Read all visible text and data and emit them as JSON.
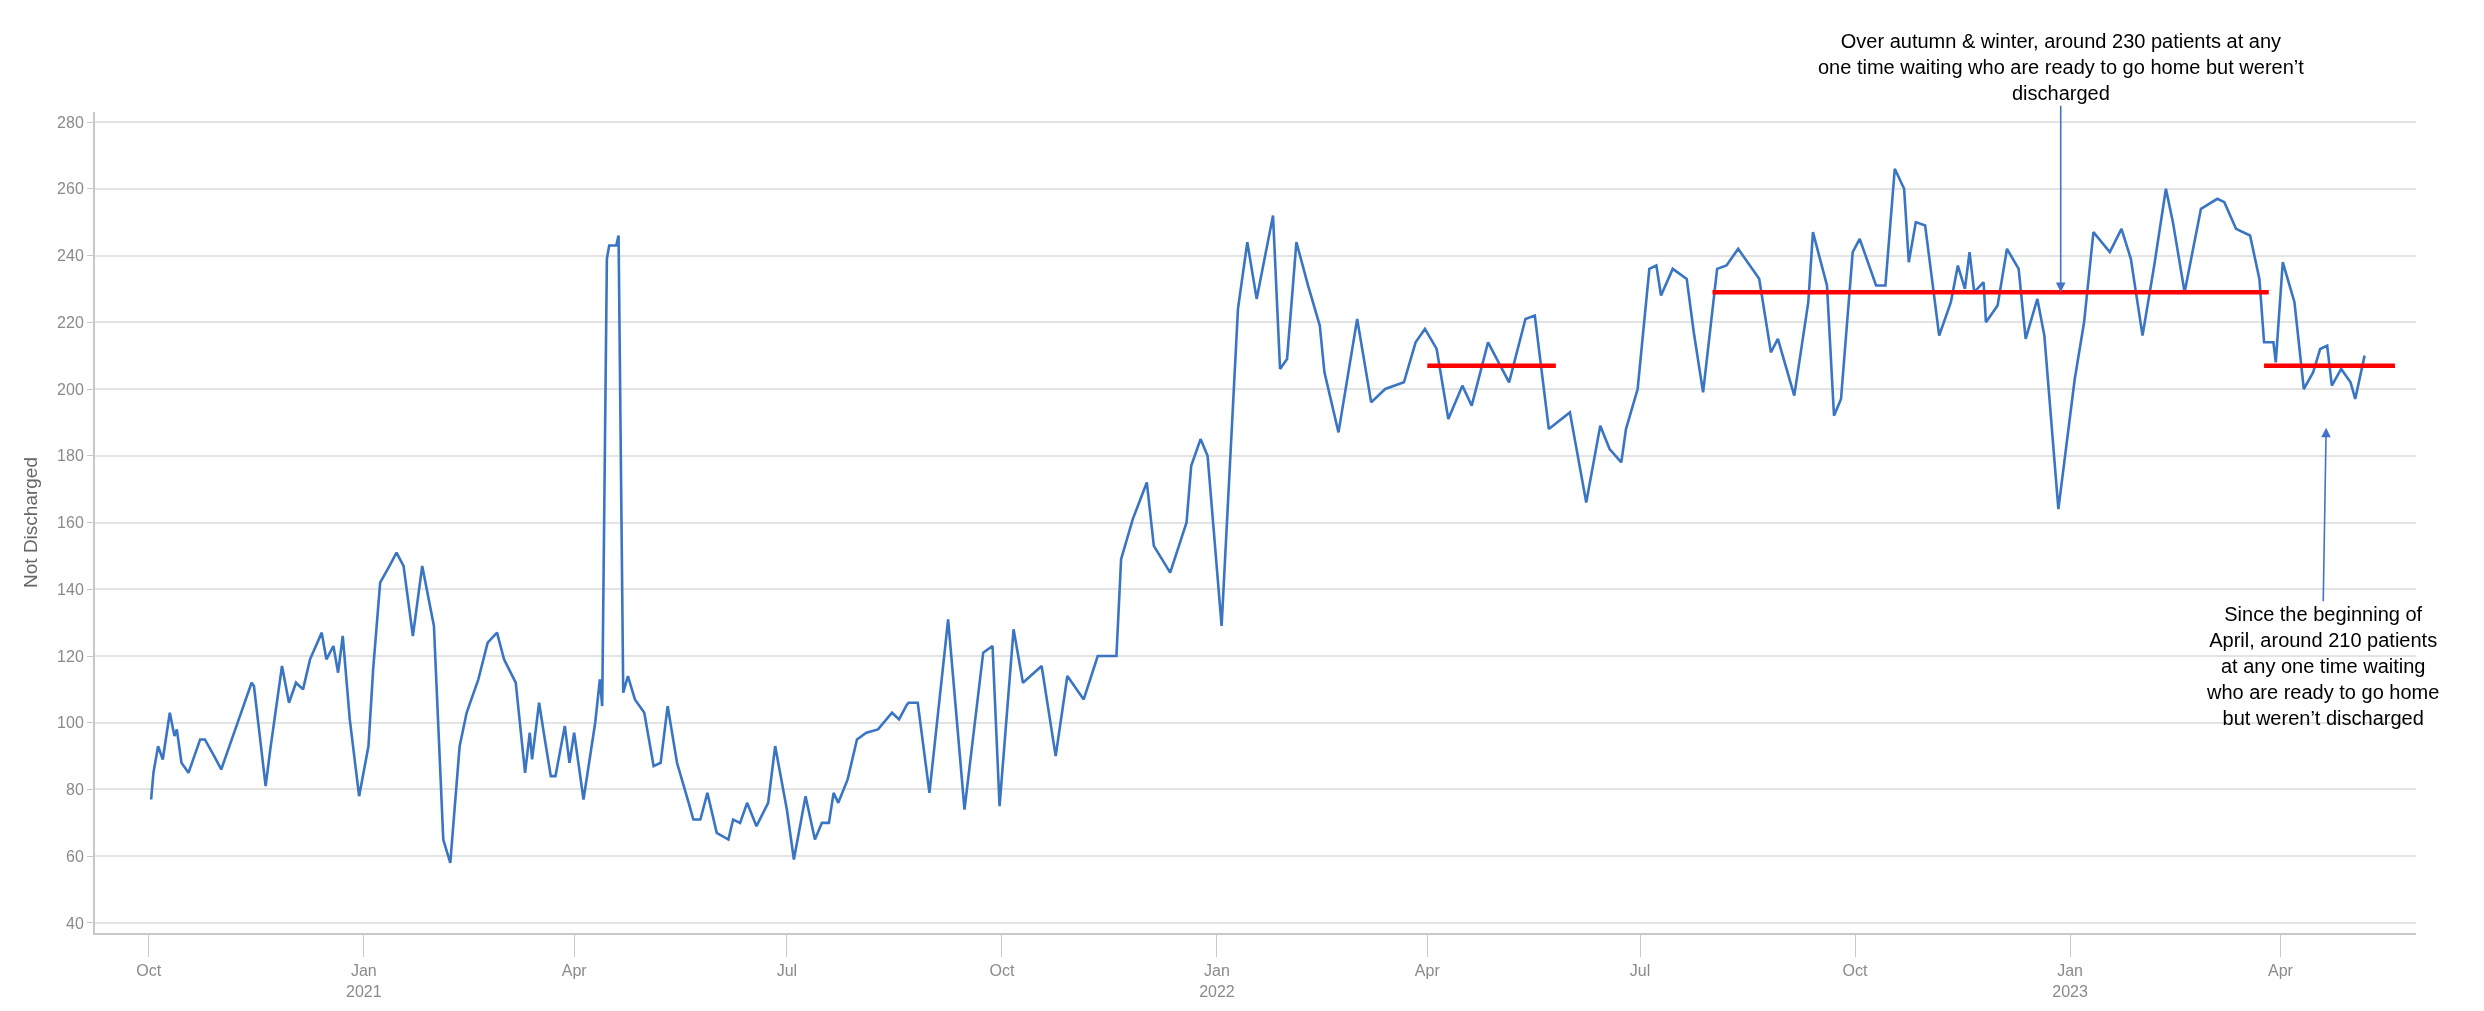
{
  "chart_data": {
    "type": "line",
    "ylabel": "Not Discharged",
    "grid": "y",
    "xlim": [
      "2020-09-08",
      "2023-05-29"
    ],
    "ylim": [
      37,
      283
    ],
    "xticks": [
      {
        "value": "2020-10-01",
        "label": "Oct"
      },
      {
        "value": "2021-01-01",
        "label": "Jan 2021"
      },
      {
        "value": "2021-04-01",
        "label": "Apr"
      },
      {
        "value": "2021-07-01",
        "label": "Jul"
      },
      {
        "value": "2021-10-01",
        "label": "Oct"
      },
      {
        "value": "2022-01-01",
        "label": "Jan 2022"
      },
      {
        "value": "2022-04-01",
        "label": "Apr"
      },
      {
        "value": "2022-07-01",
        "label": "Jul"
      },
      {
        "value": "2022-10-01",
        "label": "Oct"
      },
      {
        "value": "2023-01-01",
        "label": "Jan 2023"
      },
      {
        "value": "2023-04-01",
        "label": "Apr"
      }
    ],
    "yticks": [
      40,
      60,
      80,
      100,
      120,
      140,
      160,
      180,
      200,
      220,
      240,
      260,
      280
    ],
    "x": [
      "2020-10-02",
      "2020-10-03",
      "2020-10-05",
      "2020-10-07",
      "2020-10-10",
      "2020-10-12",
      "2020-10-13",
      "2020-10-15",
      "2020-10-18",
      "2020-10-23",
      "2020-10-25",
      "2020-10-29",
      "2020-11-01",
      "2020-11-09",
      "2020-11-14",
      "2020-11-15",
      "2020-11-20",
      "2020-11-22",
      "2020-11-27",
      "2020-11-30",
      "2020-12-03",
      "2020-12-06",
      "2020-12-09",
      "2020-12-14",
      "2020-12-16",
      "2020-12-19",
      "2020-12-21",
      "2020-12-23",
      "2020-12-26",
      "2020-12-30",
      "2021-01-03",
      "2021-01-05",
      "2021-01-08",
      "2021-01-12",
      "2021-01-15",
      "2021-01-18",
      "2021-01-22",
      "2021-01-26",
      "2021-01-31",
      "2021-02-04",
      "2021-02-07",
      "2021-02-11",
      "2021-02-14",
      "2021-02-19",
      "2021-02-23",
      "2021-02-27",
      "2021-03-02",
      "2021-03-07",
      "2021-03-11",
      "2021-03-13",
      "2021-03-14",
      "2021-03-17",
      "2021-03-19",
      "2021-03-22",
      "2021-03-24",
      "2021-03-28",
      "2021-03-30",
      "2021-04-01",
      "2021-04-05",
      "2021-04-10",
      "2021-04-12",
      "2021-04-13",
      "2021-04-15",
      "2021-04-16",
      "2021-04-19",
      "2021-04-20",
      "2021-04-22",
      "2021-04-24",
      "2021-04-27",
      "2021-05-01",
      "2021-05-05",
      "2021-05-08",
      "2021-05-11",
      "2021-05-15",
      "2021-05-20",
      "2021-05-22",
      "2021-05-25",
      "2021-05-28",
      "2021-06-01",
      "2021-06-06",
      "2021-06-08",
      "2021-06-11",
      "2021-06-14",
      "2021-06-18",
      "2021-06-23",
      "2021-06-26",
      "2021-07-01",
      "2021-07-04",
      "2021-07-09",
      "2021-07-13",
      "2021-07-16",
      "2021-07-19",
      "2021-07-21",
      "2021-07-23",
      "2021-07-27",
      "2021-07-31",
      "2021-08-04",
      "2021-08-09",
      "2021-08-15",
      "2021-08-18",
      "2021-08-21",
      "2021-08-22",
      "2021-08-26",
      "2021-08-31",
      "2021-09-08",
      "2021-09-15",
      "2021-09-23",
      "2021-09-27",
      "2021-09-30",
      "2021-10-06",
      "2021-10-10",
      "2021-10-18",
      "2021-10-24",
      "2021-10-29",
      "2021-11-05",
      "2021-11-11",
      "2021-11-19",
      "2021-11-21",
      "2021-11-26",
      "2021-12-02",
      "2021-12-05",
      "2021-12-12",
      "2021-12-19",
      "2021-12-21",
      "2021-12-25",
      "2021-12-28",
      "2022-01-03",
      "2022-01-10",
      "2022-01-14",
      "2022-01-18",
      "2022-01-25",
      "2022-01-28",
      "2022-01-31",
      "2022-02-04",
      "2022-02-09",
      "2022-02-14",
      "2022-02-16",
      "2022-02-22",
      "2022-03-02",
      "2022-03-08",
      "2022-03-14",
      "2022-03-22",
      "2022-03-27",
      "2022-03-31",
      "2022-04-05",
      "2022-04-10",
      "2022-04-16",
      "2022-04-20",
      "2022-04-27",
      "2022-05-06",
      "2022-05-13",
      "2022-05-17",
      "2022-05-23",
      "2022-06-01",
      "2022-06-08",
      "2022-06-14",
      "2022-06-18",
      "2022-06-23",
      "2022-06-25",
      "2022-06-30",
      "2022-07-05",
      "2022-07-08",
      "2022-07-10",
      "2022-07-15",
      "2022-07-21",
      "2022-07-24",
      "2022-07-28",
      "2022-08-03",
      "2022-08-07",
      "2022-08-12",
      "2022-08-21",
      "2022-08-26",
      "2022-08-29",
      "2022-09-05",
      "2022-09-11",
      "2022-09-13",
      "2022-09-19",
      "2022-09-22",
      "2022-09-25",
      "2022-09-30",
      "2022-10-03",
      "2022-10-10",
      "2022-10-14",
      "2022-10-18",
      "2022-10-22",
      "2022-10-24",
      "2022-10-27",
      "2022-10-31",
      "2022-11-06",
      "2022-11-11",
      "2022-11-14",
      "2022-11-17",
      "2022-11-19",
      "2022-11-21",
      "2022-11-25",
      "2022-11-26",
      "2022-12-01",
      "2022-12-05",
      "2022-12-10",
      "2022-12-13",
      "2022-12-18",
      "2022-12-21",
      "2022-12-27",
      "2023-01-03",
      "2023-01-07",
      "2023-01-11",
      "2023-01-18",
      "2023-01-23",
      "2023-01-27",
      "2023-02-01",
      "2023-02-06",
      "2023-02-11",
      "2023-02-14",
      "2023-02-19",
      "2023-02-26",
      "2023-03-05",
      "2023-03-08",
      "2023-03-13",
      "2023-03-19",
      "2023-03-23",
      "2023-03-25",
      "2023-03-29",
      "2023-03-30",
      "2023-04-02",
      "2023-04-07",
      "2023-04-11",
      "2023-04-15",
      "2023-04-18",
      "2023-04-21",
      "2023-04-23",
      "2023-04-27",
      "2023-05-01",
      "2023-05-03",
      "2023-05-07"
    ],
    "series": [
      {
        "color": "#3a75c4",
        "values": [
          77,
          85,
          93,
          89,
          103,
          96,
          98,
          88,
          85,
          95,
          95,
          90,
          86,
          102,
          112,
          111,
          81,
          92,
          117,
          106,
          112,
          110,
          119,
          127,
          119,
          123,
          115,
          126,
          101,
          78,
          93,
          116,
          142,
          147,
          151,
          147,
          126,
          147,
          129,
          65,
          58,
          93,
          103,
          113,
          124,
          127,
          119,
          112,
          85,
          97,
          89,
          106,
          97,
          84,
          84,
          99,
          88,
          97,
          77,
          100,
          113,
          105,
          239,
          243,
          243,
          246,
          109,
          114,
          107,
          103,
          87,
          88,
          105,
          88,
          76,
          71,
          71,
          79,
          67,
          65,
          71,
          70,
          76,
          69,
          76,
          93,
          74,
          59,
          78,
          65,
          70,
          70,
          79,
          76,
          83,
          95,
          97,
          98,
          103,
          101,
          105,
          106,
          106,
          79,
          131,
          74,
          121,
          123,
          75,
          128,
          112,
          117,
          90,
          114,
          107,
          120,
          120,
          149,
          161,
          172,
          153,
          145,
          160,
          177,
          185,
          180,
          129,
          224,
          244,
          227,
          252,
          206,
          209,
          244,
          231,
          219,
          205,
          187,
          221,
          196,
          200,
          202,
          214,
          218,
          212,
          191,
          201,
          195,
          214,
          202,
          221,
          222,
          188,
          193,
          166,
          189,
          182,
          178,
          188,
          200,
          236,
          237,
          228,
          236,
          233,
          217,
          199,
          236,
          237,
          242,
          233,
          211,
          215,
          198,
          226,
          247,
          231,
          192,
          197,
          241,
          245,
          231,
          231,
          266,
          260,
          238,
          250,
          249,
          216,
          226,
          237,
          230,
          241,
          229,
          232,
          220,
          225,
          242,
          236,
          215,
          227,
          216,
          164,
          203,
          220,
          247,
          241,
          248,
          239,
          216,
          237,
          260,
          250,
          229,
          254,
          257,
          256,
          248,
          246,
          233,
          214,
          214,
          208,
          238,
          226,
          200,
          205,
          212,
          213,
          201,
          206,
          202,
          197,
          210
        ]
      },
      {
        "type": "line",
        "color": "#ff0000",
        "x": [
          "2022-04-01",
          "2022-05-26"
        ],
        "values": [
          207,
          207
        ]
      },
      {
        "type": "line",
        "color": "#ff0000",
        "x": [
          "2022-08-01",
          "2023-03-27"
        ],
        "values": [
          229,
          229
        ]
      },
      {
        "type": "line",
        "color": "#ff0000",
        "x": [
          "2023-03-25",
          "2023-05-20"
        ],
        "values": [
          207,
          207
        ]
      }
    ],
    "annotations": [
      {
        "text": "Over autumn & winter, around 230 patients at any one time waiting who are ready to go home but weren’t discharged",
        "x": "2022-12-28",
        "y": 229
      },
      {
        "text": "Since the beginning of April, around 210 patients at any one time waiting who are ready to go home but weren’t discharged",
        "x": "2023-04-21",
        "y": 207
      }
    ]
  }
}
